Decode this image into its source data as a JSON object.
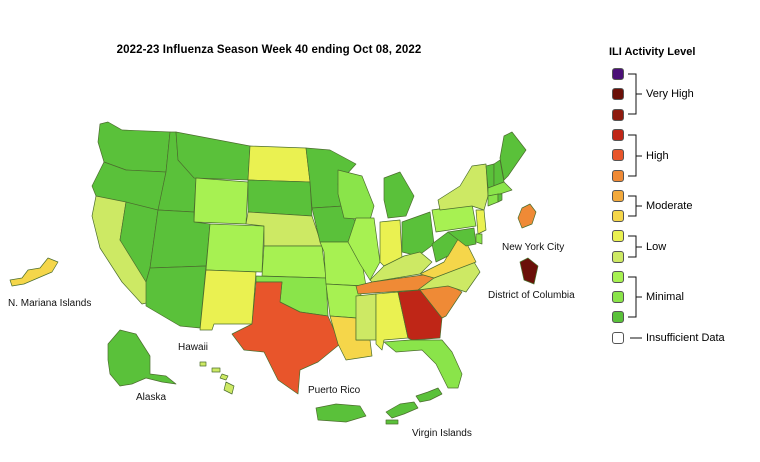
{
  "title": "2022-23 Influenza Season Week 40 ending Oct 08, 2022",
  "legend": {
    "title": "ILI Activity Level",
    "levels": [
      {
        "level": 10,
        "color": "#4b1077"
      },
      {
        "level": 9,
        "color": "#6b1008"
      },
      {
        "level": 8,
        "color": "#8e1a0e"
      },
      {
        "level": 7,
        "color": "#bf2617"
      },
      {
        "level": 6,
        "color": "#e8552b"
      },
      {
        "level": 5,
        "color": "#ef8a36"
      },
      {
        "level": 4,
        "color": "#f2a93c"
      },
      {
        "level": 3,
        "color": "#f5d64a"
      },
      {
        "level": 2,
        "color": "#eaf151"
      },
      {
        "level": 1,
        "color": "#cde964"
      },
      {
        "level": 0,
        "color": "#a7f152"
      },
      {
        "level": -1,
        "color": "#8ae44a"
      },
      {
        "level": -2,
        "color": "#5ac13a"
      }
    ],
    "groups": {
      "very_high": "Very High",
      "high": "High",
      "moderate": "Moderate",
      "low": "Low",
      "minimal": "Minimal",
      "insufficient": "Insufficient Data"
    },
    "insufficient_color": "#ffffff"
  },
  "colors": {
    "minimal_dark": "#5ac13a",
    "minimal_mid": "#8ae44a",
    "minimal_light": "#a7f152",
    "low_green": "#cde964",
    "low_yellow": "#eaf151",
    "moderate_low": "#f5d64a",
    "moderate_high": "#f2a93c",
    "high_orange": "#ef8a36",
    "high": "#e8552b",
    "very_high_light": "#bf2617",
    "very_high_dark": "#8e1a0e",
    "very_high_darkest": "#6b1008"
  },
  "labels": {
    "nyc": "New York City",
    "dc": "District of Columbia",
    "mariana": "N. Mariana Islands",
    "hawaii": "Hawaii",
    "alaska": "Alaska",
    "puerto_rico": "Puerto Rico",
    "virgin_islands": "Virgin Islands"
  }
}
